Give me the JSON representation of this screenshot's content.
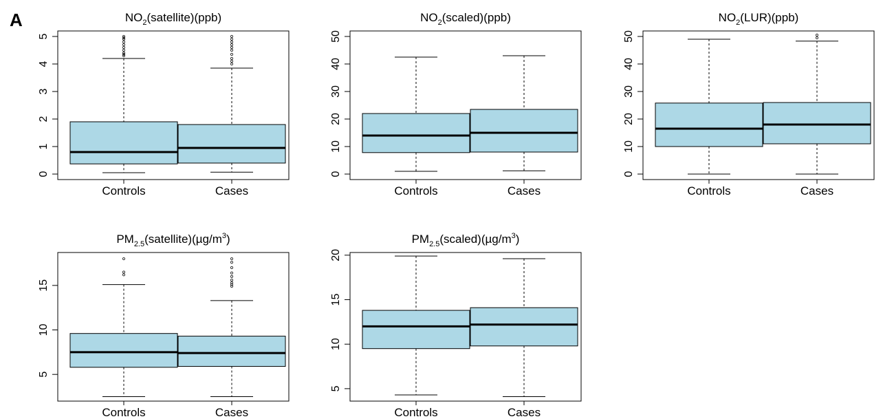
{
  "panel_label": "A",
  "chart_data": [
    {
      "type": "box",
      "title": {
        "main": "NO",
        "sub": "2",
        "rest": "(satellite)(ppb)"
      },
      "categories": [
        "Controls",
        "Cases"
      ],
      "ylim": [
        -0.2,
        5.2
      ],
      "yticks": [
        "0",
        "1",
        "2",
        "3",
        "4",
        "5"
      ],
      "ytick_values": [
        0,
        1,
        2,
        3,
        4,
        5
      ],
      "fill_color": "#add8e6",
      "boxes": [
        {
          "name": "Controls",
          "whisker_low": 0.05,
          "q1": 0.37,
          "median": 0.8,
          "q3": 1.9,
          "whisker_high": 4.2,
          "outliers": [
            4.3,
            4.35,
            4.4,
            4.5,
            4.6,
            4.7,
            4.8,
            4.9,
            4.95,
            5.0
          ]
        },
        {
          "name": "Cases",
          "whisker_low": 0.07,
          "q1": 0.4,
          "median": 0.95,
          "q3": 1.8,
          "whisker_high": 3.85,
          "outliers": [
            4.0,
            4.1,
            4.2,
            4.35,
            4.5,
            4.6,
            4.7,
            4.8,
            4.9,
            5.0
          ]
        }
      ]
    },
    {
      "type": "box",
      "title": {
        "main": "NO",
        "sub": "2",
        "rest": "(scaled)(ppb)"
      },
      "categories": [
        "Controls",
        "Cases"
      ],
      "ylim": [
        -2,
        52
      ],
      "yticks": [
        "0",
        "10",
        "20",
        "30",
        "40",
        "50"
      ],
      "ytick_values": [
        0,
        10,
        20,
        30,
        40,
        50
      ],
      "fill_color": "#add8e6",
      "boxes": [
        {
          "name": "Controls",
          "whisker_low": 1,
          "q1": 7.8,
          "median": 14,
          "q3": 22,
          "whisker_high": 42.5,
          "outliers": []
        },
        {
          "name": "Cases",
          "whisker_low": 1.2,
          "q1": 8,
          "median": 15,
          "q3": 23.5,
          "whisker_high": 43,
          "outliers": []
        }
      ]
    },
    {
      "type": "box",
      "title": {
        "main": "NO",
        "sub": "2",
        "rest": "(LUR)(ppb)"
      },
      "categories": [
        "Controls",
        "Cases"
      ],
      "ylim": [
        -2,
        52
      ],
      "yticks": [
        "0",
        "10",
        "20",
        "30",
        "40",
        "50"
      ],
      "ytick_values": [
        0,
        10,
        20,
        30,
        40,
        50
      ],
      "fill_color": "#add8e6",
      "boxes": [
        {
          "name": "Controls",
          "whisker_low": 0,
          "q1": 10,
          "median": 16.5,
          "q3": 25.8,
          "whisker_high": 49,
          "outliers": []
        },
        {
          "name": "Cases",
          "whisker_low": 0,
          "q1": 11,
          "median": 18,
          "q3": 26,
          "whisker_high": 48.3,
          "outliers": [
            49.5,
            50.5
          ]
        }
      ]
    },
    {
      "type": "box",
      "title": {
        "main": "PM",
        "sub": "2.5",
        "rest": "(satellite)(µg/m",
        "sup": "3",
        "end": ")"
      },
      "categories": [
        "Controls",
        "Cases"
      ],
      "ylim": [
        2,
        18.7
      ],
      "yticks": [
        "5",
        "10",
        "15"
      ],
      "ytick_values": [
        5,
        10,
        15
      ],
      "fill_color": "#add8e6",
      "boxes": [
        {
          "name": "Controls",
          "whisker_low": 2.5,
          "q1": 5.8,
          "median": 7.5,
          "q3": 9.6,
          "whisker_high": 15.1,
          "outliers": [
            16.2,
            16.5,
            18.0
          ]
        },
        {
          "name": "Cases",
          "whisker_low": 2.5,
          "q1": 5.9,
          "median": 7.4,
          "q3": 9.3,
          "whisker_high": 13.3,
          "outliers": [
            14.9,
            15.1,
            15.3,
            15.6,
            16.0,
            16.4,
            17.0,
            17.6,
            18.0
          ]
        }
      ]
    },
    {
      "type": "box",
      "title": {
        "main": "PM",
        "sub": "2.5",
        "rest": "(scaled)(µg/m",
        "sup": "3",
        "end": ")"
      },
      "categories": [
        "Controls",
        "Cases"
      ],
      "ylim": [
        3.6,
        20.3
      ],
      "yticks": [
        "5",
        "10",
        "15",
        "20"
      ],
      "ytick_values": [
        5,
        10,
        15,
        20
      ],
      "fill_color": "#add8e6",
      "boxes": [
        {
          "name": "Controls",
          "whisker_low": 4.3,
          "q1": 9.5,
          "median": 12,
          "q3": 13.8,
          "whisker_high": 19.9,
          "outliers": []
        },
        {
          "name": "Cases",
          "whisker_low": 4.1,
          "q1": 9.8,
          "median": 12.2,
          "q3": 14.1,
          "whisker_high": 19.6,
          "outliers": []
        }
      ]
    }
  ]
}
